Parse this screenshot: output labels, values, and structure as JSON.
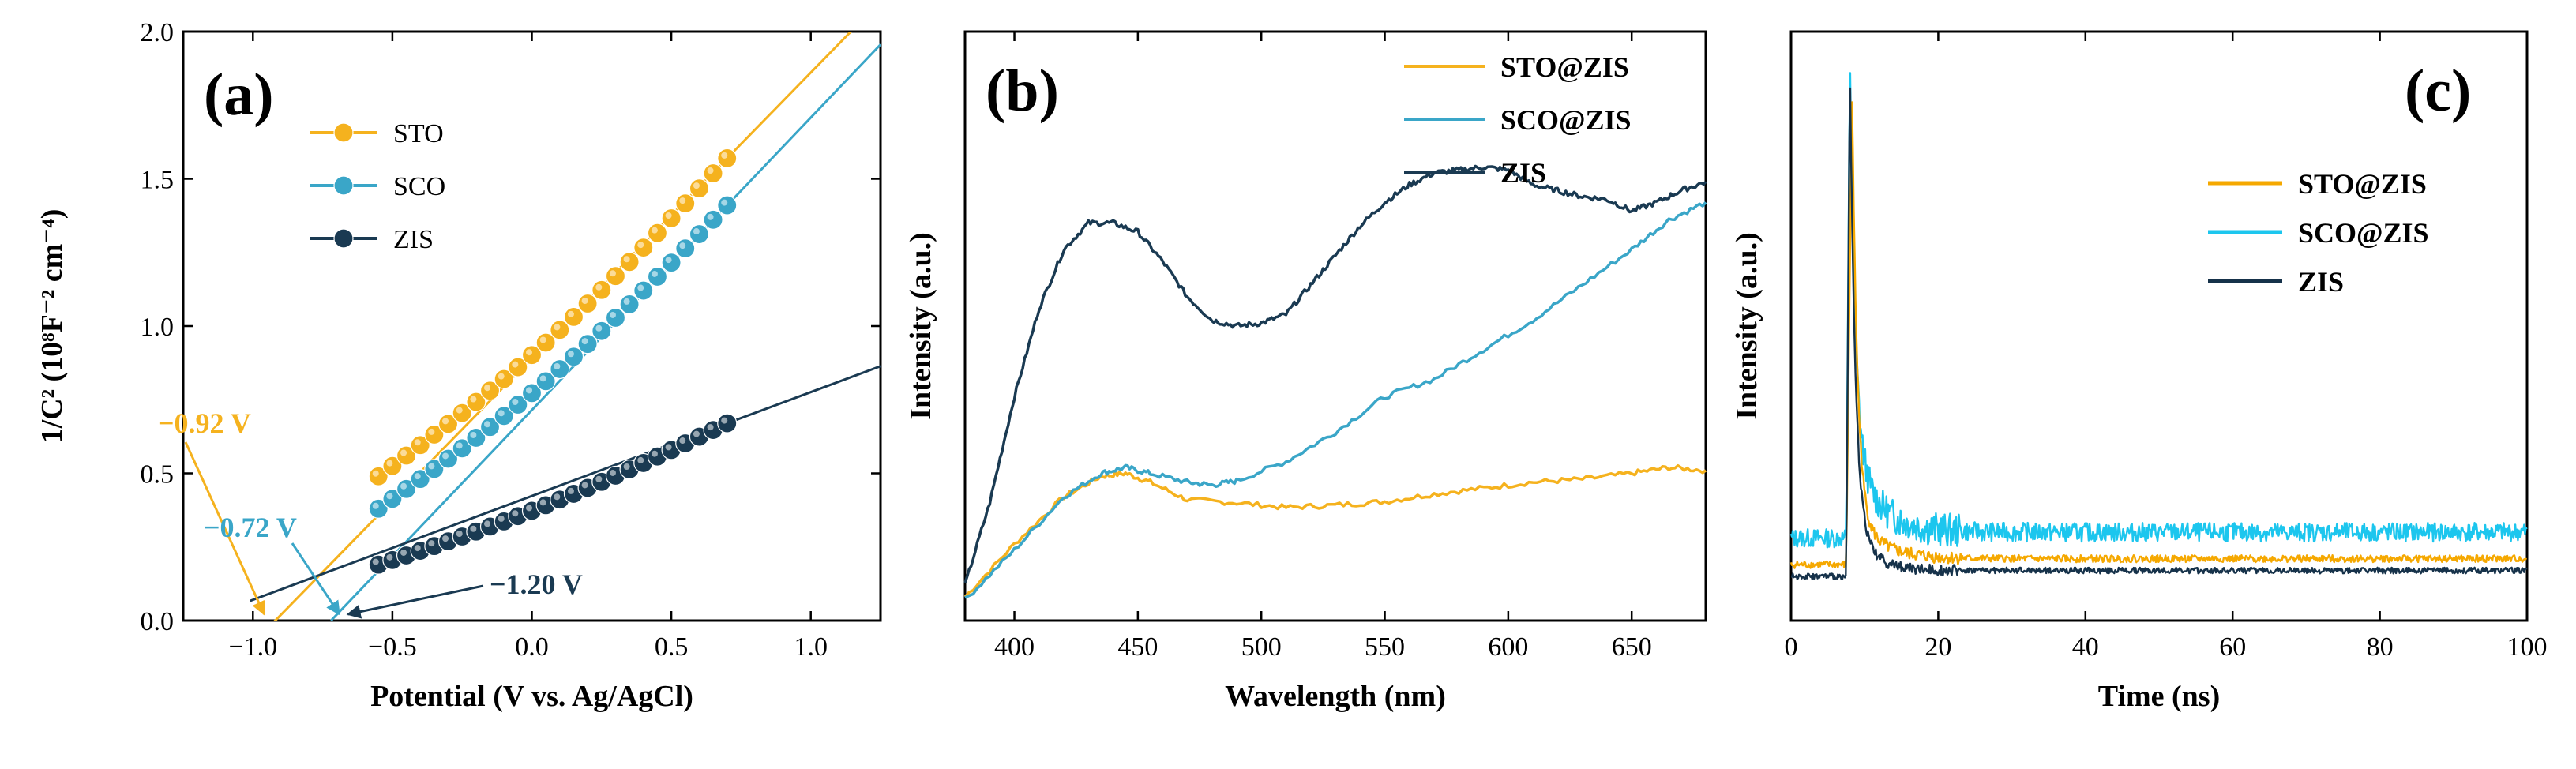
{
  "chart_data": [
    {
      "panel": "(a)",
      "type": "scatter",
      "xlabel": "Potential (V vs. Ag/AgCl)",
      "ylabel": "1/C² (10⁸F⁻² cm⁻⁴)",
      "xlim": [
        -1.25,
        1.25
      ],
      "ylim": [
        0,
        2.0
      ],
      "xticks": [
        -1.0,
        -0.5,
        0.0,
        0.5,
        1.0
      ],
      "xtick_labels": [
        "−1.0",
        "−0.5",
        "0.0",
        "0.5",
        "1.0"
      ],
      "yticks": [
        0.0,
        0.5,
        1.0,
        1.5,
        2.0
      ],
      "ytick_labels": [
        "0.0",
        "0.5",
        "1.0",
        "1.5",
        "2.0"
      ],
      "series": [
        {
          "name": "STO",
          "color": "#F5B21E",
          "x_start": -0.55,
          "x_end": 0.7,
          "n_points": 26,
          "y_start": 0.49,
          "y_end": 1.57,
          "fit": {
            "x_intercept": -0.92,
            "x_from": -0.95,
            "x_to": 1.15
          }
        },
        {
          "name": "SCO",
          "color": "#3AA6C8",
          "x_start": -0.55,
          "x_end": 0.7,
          "n_points": 26,
          "y_start": 0.38,
          "y_end": 1.41,
          "fit": {
            "x_intercept": -0.72,
            "x_from": -0.72,
            "x_to": 1.25
          }
        },
        {
          "name": "ZIS",
          "color": "#1A3A52",
          "x_start": -0.55,
          "x_end": 0.7,
          "n_points": 26,
          "y_start": 0.19,
          "y_end": 0.67,
          "fit": {
            "x_intercept": -1.2,
            "x_from": -1.01,
            "x_to": 1.25
          }
        }
      ],
      "annotations": [
        {
          "text": "−0.92 V",
          "color": "#F5B21E",
          "arrow_to_x": -0.96
        },
        {
          "text": "−0.72 V",
          "color": "#3AA6C8",
          "arrow_to_x": -0.69
        },
        {
          "text": "−1.20 V",
          "color": "#1A3A52",
          "arrow_to_x": -0.66
        }
      ]
    },
    {
      "panel": "(b)",
      "type": "line",
      "xlabel": "Wavelength (nm)",
      "ylabel": "Intensity (a.u.)",
      "xlim": [
        380,
        680
      ],
      "ylim": [
        0,
        100
      ],
      "xticks": [
        400,
        450,
        500,
        550,
        600,
        650
      ],
      "xtick_labels": [
        "400",
        "450",
        "500",
        "550",
        "600",
        "650"
      ],
      "series": [
        {
          "name": "STO@ZIS",
          "color": "#F5B21E",
          "x": [
            380,
            400,
            420,
            435,
            445,
            455,
            470,
            490,
            510,
            530,
            550,
            570,
            590,
            610,
            630,
            650,
            665,
            680
          ],
          "y": [
            4,
            13,
            21,
            24.5,
            25,
            23.5,
            20.5,
            20,
            19.2,
            19.6,
            20.2,
            21.5,
            22.5,
            23.5,
            24,
            25,
            26,
            25.5
          ]
        },
        {
          "name": "SCO@ZIS",
          "color": "#3AA6C8",
          "x": [
            380,
            400,
            420,
            435,
            445,
            455,
            470,
            480,
            490,
            510,
            530,
            550,
            570,
            590,
            610,
            630,
            650,
            665,
            680
          ],
          "y": [
            3.5,
            12,
            21,
            25,
            26,
            25,
            23.5,
            23,
            23.7,
            27,
            32,
            38,
            41,
            46,
            51,
            57,
            63,
            68,
            71
          ]
        },
        {
          "name": "ZIS",
          "color": "#1A3A52",
          "x": [
            380,
            390,
            400,
            410,
            420,
            430,
            440,
            450,
            460,
            470,
            480,
            490,
            500,
            510,
            520,
            530,
            540,
            550,
            560,
            570,
            580,
            590,
            600,
            610,
            620,
            630,
            640,
            650,
            660,
            670,
            680
          ],
          "y": [
            6,
            20,
            38,
            53,
            63,
            67.5,
            67.5,
            66,
            61,
            55,
            51,
            50,
            50.5,
            52,
            57,
            62,
            67,
            71,
            74,
            76,
            76.5,
            77,
            76.5,
            74,
            73,
            72,
            71.5,
            69.5,
            71,
            73,
            74.5
          ]
        }
      ]
    },
    {
      "panel": "(c)",
      "type": "line",
      "xlabel": "Time (ns)",
      "ylabel": "Intensity (a.u.)",
      "xlim": [
        0,
        100
      ],
      "ylim": [
        0,
        100
      ],
      "xticks": [
        0,
        20,
        40,
        60,
        80,
        100
      ],
      "xtick_labels": [
        "0",
        "20",
        "40",
        "60",
        "80",
        "100"
      ],
      "series": [
        {
          "name": "STO@ZIS",
          "color": "#F5A800",
          "rise_t": 7.5,
          "peak_t": 8.3,
          "peak": 90,
          "baseline": 10.5,
          "tail_amp": 8,
          "decay_ns": 3.5,
          "noise": 1.2
        },
        {
          "name": "SCO@ZIS",
          "color": "#1CC6EE",
          "rise_t": 7.5,
          "peak_t": 8.0,
          "peak": 95,
          "baseline": 15,
          "tail_amp": 15,
          "decay_ns": 3.5,
          "noise": 3.2
        },
        {
          "name": "ZIS",
          "color": "#16324A",
          "rise_t": 7.5,
          "peak_t": 8.0,
          "peak": 95,
          "baseline": 8.5,
          "tail_amp": 10,
          "decay_ns": 2.5,
          "noise": 1.0
        }
      ]
    }
  ]
}
